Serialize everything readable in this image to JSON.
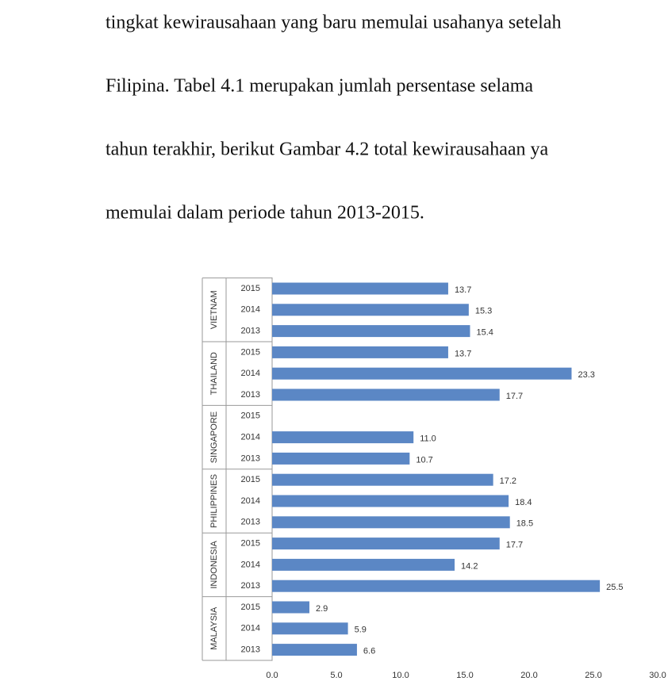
{
  "paragraph": [
    "tingkat kewirausahaan yang baru memulai usahanya setelah",
    "Filipina. Tabel 4.1 merupakan jumlah persentase selama",
    "tahun terakhir, berikut Gambar 4.2 total kewirausahaan ya",
    "memulai dalam periode tahun 2013-2015."
  ],
  "chart_data": {
    "type": "bar",
    "orientation": "horizontal",
    "color": "#5b87c5",
    "groups": [
      "VIETNAM",
      "THAILAND",
      "SINGAPORE",
      "PHILIPPINES",
      "INDONESIA",
      "MALAYSIA"
    ],
    "categories": [
      "2015",
      "2014",
      "2013",
      "2015",
      "2014",
      "2013",
      "2015",
      "2014",
      "2013",
      "2015",
      "2014",
      "2013",
      "2015",
      "2014",
      "2013",
      "2015",
      "2014",
      "2013"
    ],
    "values": [
      13.7,
      15.3,
      15.4,
      13.7,
      23.3,
      17.7,
      null,
      11.0,
      10.7,
      17.2,
      18.4,
      18.5,
      17.7,
      14.2,
      25.5,
      2.9,
      5.9,
      6.6
    ],
    "value_labels": [
      "13.7",
      "15.3",
      "15.4",
      "13.7",
      "23.3",
      "17.7",
      null,
      "11.0",
      "10.7",
      "17.2",
      "18.4",
      "18.5",
      "17.7",
      "14.2",
      "25.5",
      "2.9",
      "5.9",
      "6.6"
    ],
    "xlim": [
      0,
      30
    ],
    "xticks": [
      {
        "value": 0,
        "label": "0.0"
      },
      {
        "value": 5,
        "label": "5.0"
      },
      {
        "value": 10,
        "label": "10.0"
      },
      {
        "value": 15,
        "label": "15.0"
      },
      {
        "value": 20,
        "label": "20.0"
      },
      {
        "value": 25,
        "label": "25.0"
      },
      {
        "value": 30,
        "label": "30.0"
      }
    ]
  }
}
